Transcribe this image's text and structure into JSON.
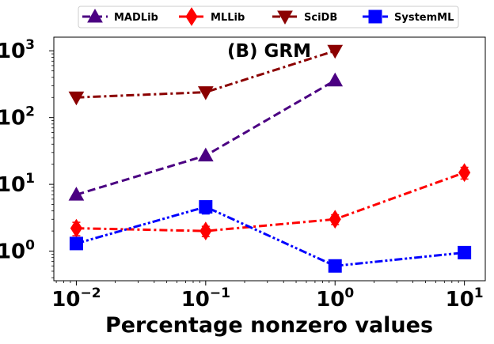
{
  "chart_data": {
    "type": "line",
    "title": "(B) GRM",
    "xlabel": "Percentage nonzero values",
    "ylabel": "",
    "xscale": "log",
    "yscale": "log",
    "xlim": [
      0.0067,
      14.5
    ],
    "ylim": [
      0.36,
      1600
    ],
    "x_ticks": [
      {
        "value": 0.01,
        "base": "10",
        "exp": "−2"
      },
      {
        "value": 0.1,
        "base": "10",
        "exp": "−1"
      },
      {
        "value": 1,
        "base": "10",
        "exp": "0"
      },
      {
        "value": 10,
        "base": "10",
        "exp": "1"
      }
    ],
    "y_ticks": [
      {
        "value": 1,
        "base": "10",
        "exp": "0"
      },
      {
        "value": 10,
        "base": "10",
        "exp": "1"
      },
      {
        "value": 100,
        "base": "10",
        "exp": "2"
      },
      {
        "value": 1000,
        "base": "10",
        "exp": "3"
      }
    ],
    "legend_position": "top-center",
    "grid": false,
    "series": [
      {
        "name": "MADLib",
        "color": "#4b0082",
        "marker": "triangle-up",
        "dash": "dashed",
        "x": [
          0.01,
          0.1,
          1
        ],
        "values": [
          7,
          27,
          360
        ],
        "err": [
          0,
          0,
          0
        ]
      },
      {
        "name": "MLLib",
        "color": "#ff0000",
        "marker": "diamond",
        "dash": "dashdot",
        "x": [
          0.01,
          0.1,
          1,
          10
        ],
        "values": [
          2.2,
          2.0,
          3.0,
          15
        ],
        "err": [
          0.5,
          0.35,
          0.5,
          3
        ]
      },
      {
        "name": "SciDB",
        "color": "#8b0000",
        "marker": "triangle-down",
        "dash": "dashdot",
        "x": [
          0.01,
          0.1,
          1
        ],
        "values": [
          200,
          240,
          1000
        ],
        "err": [
          0,
          0,
          0
        ]
      },
      {
        "name": "SystemML",
        "color": "#0000ff",
        "marker": "square",
        "dash": "dashdotdot",
        "x": [
          0.01,
          0.1,
          1,
          10
        ],
        "values": [
          1.3,
          4.6,
          0.6,
          0.95
        ],
        "err": [
          0,
          1.0,
          0,
          0
        ]
      }
    ]
  }
}
